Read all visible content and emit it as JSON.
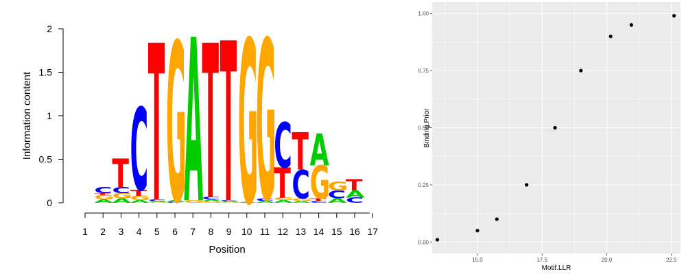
{
  "colors": {
    "A": "#00cc00",
    "C": "#0000ff",
    "G": "#ffa500",
    "T": "#ff0000",
    "panel_bg": "#ebebeb",
    "grid": "#ffffff",
    "point": "#000000"
  },
  "chart_data": [
    {
      "type": "sequence_logo",
      "xlabel": "Position",
      "ylabel": "Information content",
      "ylim": [
        0,
        2
      ],
      "yticks": [
        "0",
        "0.5",
        "1",
        "1.5",
        "2"
      ],
      "xticks": [
        "1",
        "2",
        "3",
        "4",
        "5",
        "6",
        "7",
        "8",
        "9",
        "10",
        "11",
        "12",
        "13",
        "14",
        "15",
        "16",
        "17"
      ],
      "positions": [
        {
          "pos": 2,
          "letters": [
            [
              "A",
              0.04
            ],
            [
              "G",
              0.05
            ],
            [
              "T",
              0.02
            ],
            [
              "C",
              0.07
            ]
          ]
        },
        {
          "pos": 3,
          "letters": [
            [
              "A",
              0.05
            ],
            [
              "G",
              0.06
            ],
            [
              "C",
              0.07
            ],
            [
              "T",
              0.33
            ]
          ]
        },
        {
          "pos": 4,
          "letters": [
            [
              "A",
              0.03
            ],
            [
              "G",
              0.05
            ],
            [
              "T",
              0.07
            ],
            [
              "C",
              0.95
            ]
          ]
        },
        {
          "pos": 5,
          "letters": [
            [
              "G",
              0.01
            ],
            [
              "A",
              0.01
            ],
            [
              "C",
              0.02
            ],
            [
              "T",
              1.8
            ]
          ]
        },
        {
          "pos": 6,
          "letters": [
            [
              "C",
              0.01
            ],
            [
              "A",
              0.02
            ],
            [
              "G",
              1.83
            ]
          ]
        },
        {
          "pos": 7,
          "letters": [
            [
              "G",
              0.03
            ],
            [
              "A",
              1.88
            ]
          ]
        },
        {
          "pos": 8,
          "letters": [
            [
              "G",
              0.02
            ],
            [
              "A",
              0.02
            ],
            [
              "C",
              0.03
            ],
            [
              "T",
              1.77
            ]
          ]
        },
        {
          "pos": 9,
          "letters": [
            [
              "G",
              0.01
            ],
            [
              "A",
              0.01
            ],
            [
              "C",
              0.01
            ],
            [
              "T",
              1.84
            ]
          ]
        },
        {
          "pos": 10,
          "letters": [
            [
              "A",
              0.01
            ],
            [
              "G",
              1.88
            ]
          ]
        },
        {
          "pos": 11,
          "letters": [
            [
              "A",
              0.02
            ],
            [
              "C",
              0.03
            ],
            [
              "G",
              1.84
            ]
          ]
        },
        {
          "pos": 12,
          "letters": [
            [
              "A",
              0.03
            ],
            [
              "G",
              0.03
            ],
            [
              "T",
              0.35
            ],
            [
              "C",
              0.52
            ]
          ]
        },
        {
          "pos": 13,
          "letters": [
            [
              "A",
              0.02
            ],
            [
              "G",
              0.03
            ],
            [
              "C",
              0.33
            ],
            [
              "T",
              0.43
            ]
          ]
        },
        {
          "pos": 14,
          "letters": [
            [
              "C",
              0.02
            ],
            [
              "T",
              0.03
            ],
            [
              "G",
              0.38
            ],
            [
              "A",
              0.37
            ]
          ]
        },
        {
          "pos": 15,
          "letters": [
            [
              "A",
              0.05
            ],
            [
              "C",
              0.09
            ],
            [
              "G",
              0.1
            ]
          ]
        },
        {
          "pos": 16,
          "letters": [
            [
              "C",
              0.06
            ],
            [
              "A",
              0.08
            ],
            [
              "T",
              0.13
            ]
          ]
        }
      ]
    },
    {
      "type": "scatter",
      "xlabel": "Motif.LLR",
      "ylabel": "Binding.Prior",
      "xlim": [
        13.25,
        22.85
      ],
      "ylim": [
        -0.05,
        1.05
      ],
      "xticks": [
        15.0,
        17.5,
        20.0,
        22.5
      ],
      "xtick_labels": [
        "15.0",
        "17.5",
        "20.0",
        "22.5"
      ],
      "yticks": [
        0.0,
        0.25,
        0.5,
        0.75,
        1.0
      ],
      "ytick_labels": [
        "0.00",
        "0.25",
        "0.50",
        "0.75",
        "1.00"
      ],
      "grid": true,
      "x": [
        13.45,
        15.0,
        15.75,
        16.9,
        18.0,
        19.0,
        20.15,
        20.95,
        22.6
      ],
      "y": [
        0.01,
        0.05,
        0.1,
        0.25,
        0.5,
        0.75,
        0.9,
        0.95,
        0.99
      ]
    }
  ]
}
